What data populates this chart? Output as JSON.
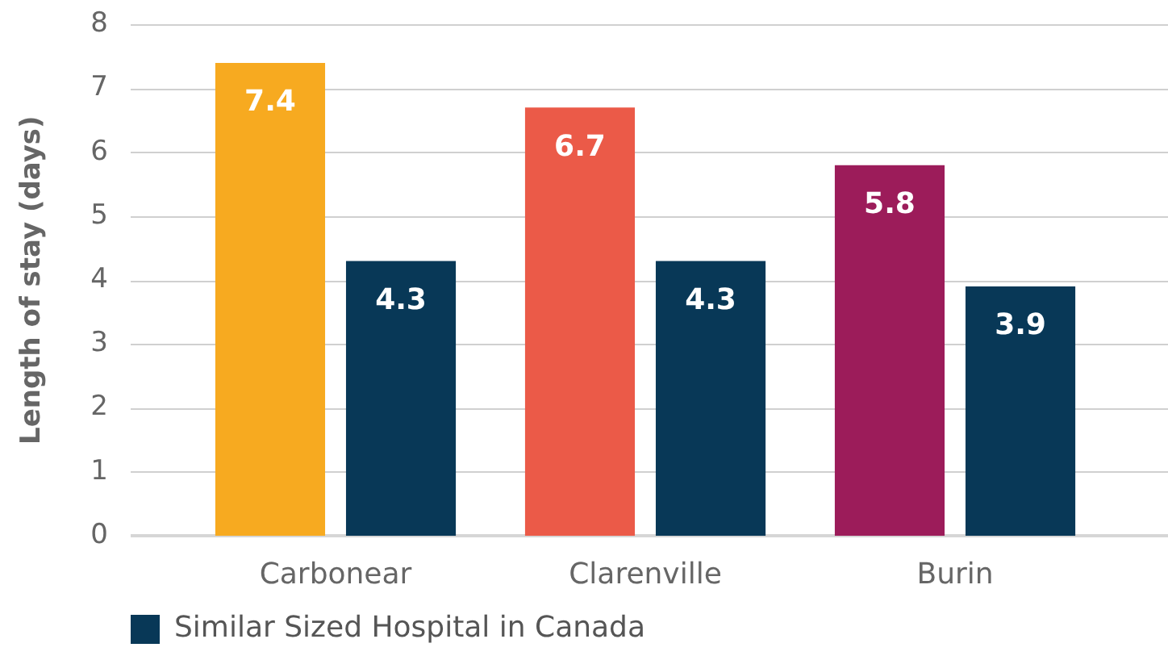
{
  "chart_data": {
    "type": "bar",
    "ylabel": "Length of stay (days)",
    "categories": [
      "Carbonear",
      "Clarenville",
      "Burin"
    ],
    "series": [
      {
        "colors": [
          "#f7aa20",
          "#eb5a48",
          "#9c1c5a"
        ],
        "values": [
          7.4,
          6.7,
          5.8
        ]
      },
      {
        "name": "Similar Sized Hospital in Canada",
        "color": "#083857",
        "values": [
          4.3,
          4.3,
          3.9
        ]
      }
    ],
    "ylim": [
      0,
      8
    ],
    "yticks": [
      0,
      1,
      2,
      3,
      4,
      5,
      6,
      7,
      8
    ],
    "grid": "y",
    "legend": "bottom",
    "data_labels": true
  }
}
